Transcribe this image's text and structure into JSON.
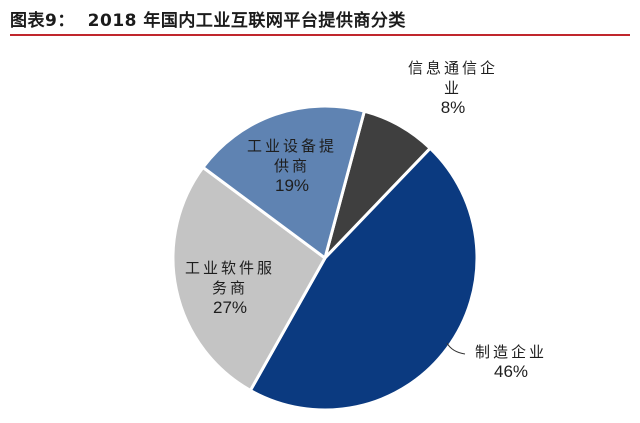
{
  "title": "图表9：  2018 年国内工业互联网平台提供商分类",
  "colors": {
    "title_rule": "#c0262d",
    "manufacturing": "#0b3a80",
    "software": "#c4c4c4",
    "equipment": "#5f83b2",
    "telecom": "#3f3f3f"
  },
  "labels": {
    "telecom": {
      "line1": "信息通信企",
      "line2": "业",
      "pct": "8%"
    },
    "equipment": {
      "line1": "工业设备提",
      "line2": "供商",
      "pct": "19%"
    },
    "software": {
      "line1": "工业软件服",
      "line2": "务商",
      "pct": "27%"
    },
    "manufacturing": {
      "line1": "制造企业",
      "pct": "46%"
    }
  },
  "chart_data": {
    "type": "pie",
    "title": "2018 年国内工业互联网平台提供商分类",
    "categories": [
      "信息通信企业",
      "制造企业",
      "工业软件服务商",
      "工业设备提供商"
    ],
    "values": [
      8,
      46,
      27,
      19
    ],
    "unit": "%",
    "start_angle_deg_from_north": 15,
    "direction": "clockwise",
    "legend": "none (direct labels)"
  }
}
